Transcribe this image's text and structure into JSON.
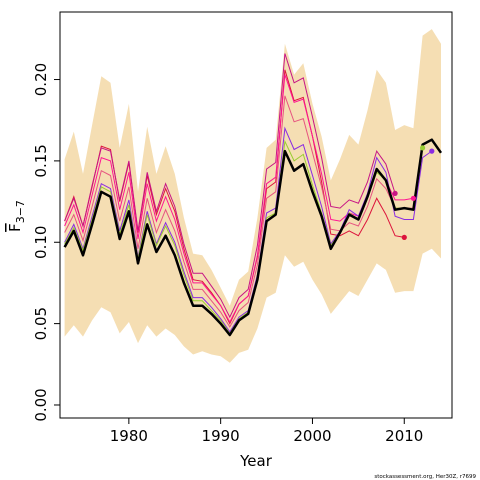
{
  "chart_data": {
    "type": "line",
    "xlabel": "Year",
    "ylabel": "F̄3–7",
    "ylabel_main": "F",
    "ylabel_sub": "3−7",
    "xlim": [
      1972.5,
      2015.2
    ],
    "ylim": [
      -0.008,
      0.2415
    ],
    "x_ticks": [
      1980,
      1990,
      2000,
      2010
    ],
    "y_ticks": [
      0.0,
      0.05,
      0.1,
      0.15,
      0.2
    ],
    "y_tick_labels": [
      "0.00",
      "0.05",
      "0.10",
      "0.15",
      "0.20"
    ],
    "footer": "stockassessment.org, Her30Z, r7699",
    "band": {
      "color": "#F5DEB3",
      "x": [
        1973,
        1974,
        1975,
        1976,
        1977,
        1978,
        1979,
        1980,
        1981,
        1982,
        1983,
        1984,
        1985,
        1986,
        1987,
        1988,
        1989,
        1990,
        1991,
        1992,
        1993,
        1994,
        1995,
        1996,
        1997,
        1998,
        1999,
        2000,
        2001,
        2002,
        2003,
        2004,
        2005,
        2006,
        2007,
        2008,
        2009,
        2010,
        2011,
        2012,
        2013,
        2014
      ],
      "upper": [
        0.151,
        0.168,
        0.142,
        0.172,
        0.202,
        0.198,
        0.158,
        0.185,
        0.131,
        0.171,
        0.142,
        0.159,
        0.142,
        0.115,
        0.093,
        0.092,
        0.083,
        0.072,
        0.061,
        0.077,
        0.082,
        0.115,
        0.158,
        0.163,
        0.222,
        0.203,
        0.21,
        0.185,
        0.165,
        0.138,
        0.151,
        0.166,
        0.16,
        0.181,
        0.206,
        0.198,
        0.169,
        0.172,
        0.17,
        0.227,
        0.231,
        0.222
      ],
      "lower": [
        0.042,
        0.049,
        0.042,
        0.052,
        0.06,
        0.057,
        0.044,
        0.051,
        0.038,
        0.049,
        0.042,
        0.047,
        0.043,
        0.036,
        0.031,
        0.033,
        0.031,
        0.03,
        0.026,
        0.032,
        0.034,
        0.047,
        0.066,
        0.069,
        0.092,
        0.085,
        0.088,
        0.077,
        0.068,
        0.056,
        0.063,
        0.07,
        0.067,
        0.077,
        0.087,
        0.083,
        0.069,
        0.07,
        0.07,
        0.093,
        0.096,
        0.09
      ]
    },
    "retro_series": [
      {
        "color": "#DC143C",
        "x": [
          1973,
          1974,
          1975,
          1976,
          1977,
          1978,
          1979,
          1980,
          1981,
          1982,
          1983,
          1984,
          1985,
          1986,
          1987,
          1988,
          1989,
          1990,
          1991,
          1992,
          1993,
          1994,
          1995,
          1996,
          1997,
          1998,
          1999,
          2000,
          2001,
          2002,
          2003,
          2004,
          2005,
          2006,
          2007,
          2008,
          2009,
          2010
        ],
        "y": [
          0.113,
          0.128,
          0.11,
          0.134,
          0.159,
          0.157,
          0.125,
          0.149,
          0.106,
          0.141,
          0.117,
          0.133,
          0.119,
          0.096,
          0.077,
          0.076,
          0.069,
          0.061,
          0.05,
          0.062,
          0.067,
          0.091,
          0.133,
          0.137,
          0.206,
          0.187,
          0.189,
          0.165,
          0.137,
          0.105,
          0.104,
          0.107,
          0.104,
          0.114,
          0.127,
          0.117,
          0.104,
          0.103
        ],
        "end": {
          "x": 2010,
          "y": 0.103
        }
      },
      {
        "color": "#C71585",
        "x": [
          1973,
          1974,
          1975,
          1976,
          1977,
          1978,
          1979,
          1980,
          1981,
          1982,
          1983,
          1984,
          1985,
          1986,
          1987,
          1988,
          1989,
          1990,
          1991,
          1992,
          1993,
          1994,
          1995,
          1996,
          1997,
          1998,
          1999,
          2000,
          2001,
          2002,
          2003,
          2004,
          2005,
          2006,
          2007,
          2008,
          2009
        ],
        "y": [
          0.113,
          0.127,
          0.11,
          0.135,
          0.158,
          0.156,
          0.126,
          0.15,
          0.107,
          0.143,
          0.119,
          0.136,
          0.122,
          0.099,
          0.081,
          0.081,
          0.073,
          0.065,
          0.054,
          0.066,
          0.071,
          0.098,
          0.145,
          0.149,
          0.216,
          0.198,
          0.201,
          0.177,
          0.152,
          0.122,
          0.121,
          0.126,
          0.124,
          0.137,
          0.156,
          0.148,
          0.13
        ],
        "end": {
          "x": 2009,
          "y": 0.13
        }
      },
      {
        "color": "#FF1493",
        "x": [
          1973,
          1974,
          1975,
          1976,
          1977,
          1978,
          1979,
          1980,
          1981,
          1982,
          1983,
          1984,
          1985,
          1986,
          1987,
          1988,
          1989,
          1990,
          1991,
          1992,
          1993,
          1994,
          1995,
          1996,
          1997,
          1998,
          1999,
          2000,
          2001,
          2002,
          2003,
          2004,
          2005,
          2006,
          2007,
          2008,
          2009,
          2010,
          2011
        ],
        "y": [
          0.11,
          0.123,
          0.106,
          0.129,
          0.152,
          0.15,
          0.12,
          0.143,
          0.102,
          0.136,
          0.113,
          0.128,
          0.114,
          0.093,
          0.075,
          0.075,
          0.068,
          0.061,
          0.051,
          0.062,
          0.067,
          0.092,
          0.136,
          0.14,
          0.203,
          0.186,
          0.188,
          0.165,
          0.142,
          0.114,
          0.113,
          0.118,
          0.116,
          0.128,
          0.145,
          0.138,
          0.126,
          0.126,
          0.127
        ],
        "end": {
          "x": 2011,
          "y": 0.127
        }
      },
      {
        "color": "#E75480",
        "x": [
          1973,
          1974,
          1975,
          1976,
          1977,
          1978,
          1979,
          1980,
          1981,
          1982,
          1983,
          1984,
          1985,
          1986,
          1987,
          1988,
          1989,
          1990,
          1991,
          1992,
          1993,
          1994,
          1995,
          1996,
          1997,
          1998,
          1999,
          2000,
          2001,
          2002,
          2003,
          2004,
          2005,
          2006,
          2007,
          2008,
          2009,
          2010,
          2011
        ],
        "y": [
          0.106,
          0.117,
          0.101,
          0.122,
          0.144,
          0.141,
          0.113,
          0.134,
          0.096,
          0.127,
          0.106,
          0.12,
          0.107,
          0.088,
          0.071,
          0.071,
          0.064,
          0.057,
          0.048,
          0.058,
          0.063,
          0.086,
          0.127,
          0.131,
          0.19,
          0.174,
          0.176,
          0.155,
          0.134,
          0.108,
          0.107,
          0.112,
          0.11,
          0.122,
          0.139,
          0.133,
          0.121,
          0.121,
          0.121
        ]
      },
      {
        "color": "#8A2BE2",
        "x": [
          1973,
          1974,
          1975,
          1976,
          1977,
          1978,
          1979,
          1980,
          1981,
          1982,
          1983,
          1984,
          1985,
          1986,
          1987,
          1988,
          1989,
          1990,
          1991,
          1992,
          1993,
          1994,
          1995,
          1996,
          1997,
          1998,
          1999,
          2000,
          2001,
          2002,
          2003,
          2004,
          2005,
          2006,
          2007,
          2008,
          2009,
          2010,
          2011,
          2012,
          2013
        ],
        "y": [
          0.1,
          0.111,
          0.096,
          0.116,
          0.136,
          0.133,
          0.107,
          0.126,
          0.091,
          0.119,
          0.099,
          0.112,
          0.1,
          0.082,
          0.066,
          0.066,
          0.06,
          0.053,
          0.045,
          0.054,
          0.058,
          0.08,
          0.118,
          0.121,
          0.17,
          0.157,
          0.16,
          0.141,
          0.122,
          0.099,
          0.107,
          0.12,
          0.116,
          0.13,
          0.152,
          0.143,
          0.116,
          0.114,
          0.114,
          0.152,
          0.156
        ],
        "end": {
          "x": 2013,
          "y": 0.156
        }
      },
      {
        "color": "#9ACD32",
        "x": [
          1973,
          1974,
          1975,
          1976,
          1977,
          1978,
          1979,
          1980,
          1981,
          1982,
          1983,
          1984,
          1985,
          1986,
          1987,
          1988,
          1989,
          1990,
          1991,
          1992,
          1993,
          1994,
          1995,
          1996,
          1997,
          1998,
          1999,
          2000,
          2001,
          2002,
          2003,
          2004,
          2005,
          2006,
          2007,
          2008,
          2009,
          2010,
          2011,
          2012
        ],
        "y": [
          0.099,
          0.109,
          0.095,
          0.114,
          0.134,
          0.131,
          0.105,
          0.123,
          0.09,
          0.117,
          0.098,
          0.11,
          0.098,
          0.08,
          0.064,
          0.064,
          0.058,
          0.052,
          0.044,
          0.053,
          0.057,
          0.078,
          0.115,
          0.118,
          0.162,
          0.15,
          0.154,
          0.135,
          0.118,
          0.098,
          0.106,
          0.118,
          0.114,
          0.127,
          0.143,
          0.138,
          0.121,
          0.121,
          0.12,
          0.158
        ],
        "end": {
          "x": 2012,
          "y": 0.158
        }
      }
    ],
    "main_series": {
      "color": "#000000",
      "x": [
        1973,
        1974,
        1975,
        1976,
        1977,
        1978,
        1979,
        1980,
        1981,
        1982,
        1983,
        1984,
        1985,
        1986,
        1987,
        1988,
        1989,
        1990,
        1991,
        1992,
        1993,
        1994,
        1995,
        1996,
        1997,
        1998,
        1999,
        2000,
        2001,
        2002,
        2003,
        2004,
        2005,
        2006,
        2007,
        2008,
        2009,
        2010,
        2011,
        2012,
        2013,
        2014
      ],
      "y": [
        0.097,
        0.107,
        0.092,
        0.111,
        0.131,
        0.128,
        0.102,
        0.119,
        0.087,
        0.111,
        0.094,
        0.104,
        0.092,
        0.075,
        0.061,
        0.061,
        0.056,
        0.05,
        0.043,
        0.052,
        0.056,
        0.077,
        0.113,
        0.117,
        0.156,
        0.144,
        0.148,
        0.131,
        0.116,
        0.096,
        0.106,
        0.117,
        0.114,
        0.128,
        0.145,
        0.138,
        0.12,
        0.121,
        0.12,
        0.16,
        0.163,
        0.155
      ]
    }
  }
}
